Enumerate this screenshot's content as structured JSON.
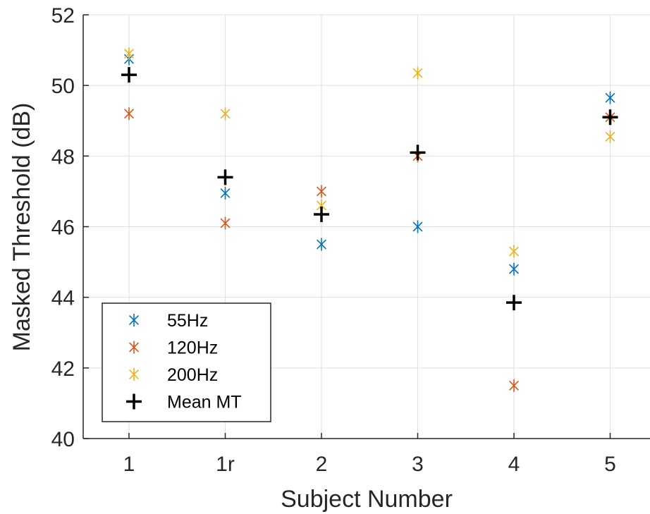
{
  "chart_data": {
    "type": "scatter",
    "title": "",
    "xlabel": "Subject Number",
    "ylabel": "Masked Threshold (dB)",
    "categories": [
      "1",
      "1r",
      "2",
      "3",
      "4",
      "5"
    ],
    "ylim": [
      40,
      52
    ],
    "yticks": [
      40,
      42,
      44,
      46,
      48,
      50,
      52
    ],
    "grid": true,
    "legend_position": "bottom-left",
    "series": [
      {
        "name": "55Hz",
        "marker": "asterisk",
        "color": "#0072BD",
        "values": [
          50.75,
          46.95,
          45.5,
          46.0,
          44.8,
          49.65
        ]
      },
      {
        "name": "120Hz",
        "marker": "asterisk",
        "color": "#D95319",
        "values": [
          49.2,
          46.1,
          47.0,
          48.0,
          41.5,
          49.1
        ]
      },
      {
        "name": "200Hz",
        "marker": "asterisk",
        "color": "#EDB120",
        "values": [
          50.9,
          49.2,
          46.6,
          50.35,
          45.3,
          48.55
        ]
      },
      {
        "name": "Mean MT",
        "marker": "plus",
        "color": "#000000",
        "values": [
          50.3,
          47.4,
          46.35,
          48.1,
          43.85,
          49.1
        ]
      }
    ]
  }
}
